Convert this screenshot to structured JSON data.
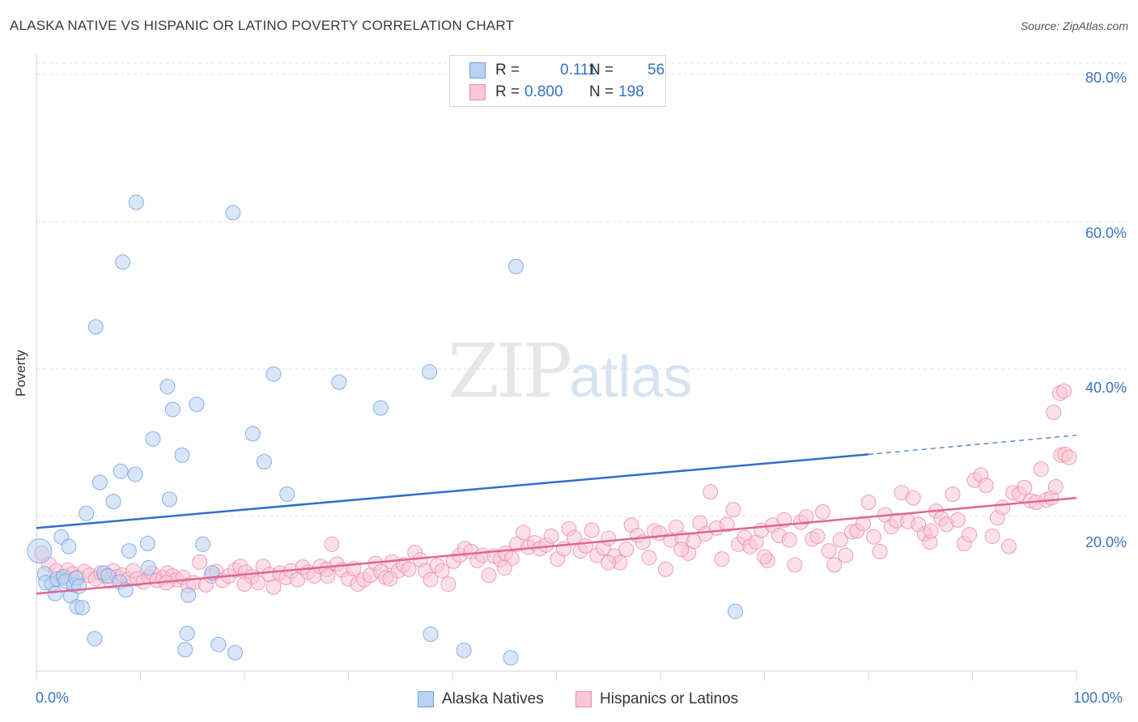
{
  "title": "ALASKA NATIVE VS HISPANIC OR LATINO POVERTY CORRELATION CHART",
  "source": "Source: ZipAtlas.com",
  "watermark": {
    "zip": "ZIP",
    "atlas": "atlas"
  },
  "legend_top": [
    {
      "r_label": "R =",
      "r_value": "0.111",
      "n_label": "N =",
      "n_value": "56",
      "color": "#b9d2f3",
      "border": "#6d9fe0"
    },
    {
      "r_label": "R =",
      "r_value": "0.800",
      "n_label": "N =",
      "n_value": "198",
      "color": "#f9c7d6",
      "border": "#ea8aa8"
    }
  ],
  "legend_bottom": [
    "Alaska Natives",
    "Hispanics or Latinos"
  ],
  "chart_data": {
    "type": "scatter",
    "title": "ALASKA NATIVE VS HISPANIC OR LATINO POVERTY CORRELATION CHART",
    "xlabel": "",
    "ylabel": "Poverty",
    "xlim": [
      0,
      100
    ],
    "ylim": [
      -1,
      81.5
    ],
    "x_tick_labels": [
      "0.0%",
      "100.0%"
    ],
    "y_ticks": [
      20,
      40,
      60,
      80
    ],
    "y_tick_labels": [
      "20.0%",
      "40.0%",
      "60.0%",
      "80.0%"
    ],
    "grid": true,
    "legend_position": "top-center",
    "series": [
      {
        "name": "Alaska Natives",
        "color": "#6d9fe0",
        "fill": "#b9d2f3",
        "trend": {
          "x": [
            0,
            80
          ],
          "y": [
            18.4,
            28.4
          ],
          "dashed_to": [
            100,
            31.0
          ]
        },
        "points": [
          [
            0.3,
            15.3
          ],
          [
            0.8,
            12.2
          ],
          [
            0.9,
            11.0
          ],
          [
            1.5,
            10.8
          ],
          [
            1.8,
            9.5
          ],
          [
            2.0,
            11.5
          ],
          [
            2.4,
            17.2
          ],
          [
            2.6,
            11.8
          ],
          [
            2.8,
            11.2
          ],
          [
            3.1,
            15.9
          ],
          [
            3.3,
            9.2
          ],
          [
            3.6,
            10.7
          ],
          [
            3.8,
            11.6
          ],
          [
            3.9,
            7.7
          ],
          [
            4.1,
            10.5
          ],
          [
            4.4,
            7.6
          ],
          [
            4.8,
            20.4
          ],
          [
            5.6,
            3.4
          ],
          [
            6.1,
            24.6
          ],
          [
            6.5,
            12.3
          ],
          [
            6.9,
            11.9
          ],
          [
            7.4,
            22.0
          ],
          [
            8.0,
            11.1
          ],
          [
            8.1,
            26.1
          ],
          [
            8.6,
            10.0
          ],
          [
            8.9,
            15.3
          ],
          [
            9.5,
            25.7
          ],
          [
            9.6,
            62.6
          ],
          [
            8.3,
            54.5
          ],
          [
            5.7,
            45.7
          ],
          [
            10.7,
            16.3
          ],
          [
            10.8,
            13.0
          ],
          [
            11.2,
            30.5
          ],
          [
            12.6,
            37.6
          ],
          [
            12.8,
            22.3
          ],
          [
            13.1,
            34.5
          ],
          [
            14.0,
            28.3
          ],
          [
            14.3,
            1.9
          ],
          [
            14.5,
            4.1
          ],
          [
            14.6,
            9.3
          ],
          [
            15.4,
            35.2
          ],
          [
            16.0,
            16.2
          ],
          [
            16.9,
            12.3
          ],
          [
            17.5,
            2.6
          ],
          [
            18.9,
            61.2
          ],
          [
            19.1,
            1.5
          ],
          [
            20.8,
            31.2
          ],
          [
            21.9,
            27.4
          ],
          [
            22.8,
            39.3
          ],
          [
            24.1,
            23.0
          ],
          [
            29.1,
            38.2
          ],
          [
            33.1,
            34.7
          ],
          [
            37.8,
            39.6
          ],
          [
            37.9,
            4.0
          ],
          [
            41.1,
            1.8
          ],
          [
            46.1,
            53.9
          ],
          [
            45.6,
            0.8
          ],
          [
            67.2,
            7.1
          ]
        ]
      },
      {
        "name": "Hispanics or Latinos",
        "color": "#ea8aa8",
        "fill": "#f9c7d6",
        "trend": {
          "x": [
            0,
            100
          ],
          "y": [
            9.5,
            22.5
          ]
        },
        "points": [
          [
            0.5,
            15.0
          ],
          [
            1.2,
            13.5
          ],
          [
            1.9,
            12.6
          ],
          [
            2.4,
            11.6
          ],
          [
            3.0,
            12.7
          ],
          [
            3.5,
            12.2
          ],
          [
            4.0,
            11.7
          ],
          [
            4.6,
            12.5
          ],
          [
            5.1,
            12.0
          ],
          [
            5.7,
            11.5
          ],
          [
            6.2,
            12.3
          ],
          [
            6.6,
            11.9
          ],
          [
            7.1,
            11.2
          ],
          [
            7.4,
            12.6
          ],
          [
            7.8,
            11.8
          ],
          [
            8.3,
            12.0
          ],
          [
            8.8,
            11.4
          ],
          [
            9.3,
            12.6
          ],
          [
            9.7,
            11.5
          ],
          [
            10.3,
            11.1
          ],
          [
            10.8,
            11.8
          ],
          [
            11.1,
            12.3
          ],
          [
            11.6,
            11.3
          ],
          [
            12.2,
            11.7
          ],
          [
            12.6,
            12.3
          ],
          [
            13.1,
            11.9
          ],
          [
            13.5,
            11.4
          ],
          [
            14.1,
            11.7
          ],
          [
            14.6,
            10.6
          ],
          [
            15.1,
            11.0
          ],
          [
            15.7,
            13.8
          ],
          [
            16.3,
            10.7
          ],
          [
            16.8,
            11.9
          ],
          [
            17.3,
            12.5
          ],
          [
            17.9,
            11.3
          ],
          [
            18.5,
            11.9
          ],
          [
            19.1,
            12.7
          ],
          [
            19.6,
            13.2
          ],
          [
            20.1,
            12.4
          ],
          [
            20.7,
            11.8
          ],
          [
            21.3,
            11.0
          ],
          [
            21.8,
            13.2
          ],
          [
            22.4,
            12.1
          ],
          [
            22.8,
            10.4
          ],
          [
            23.4,
            12.3
          ],
          [
            24.0,
            11.7
          ],
          [
            24.5,
            12.6
          ],
          [
            25.1,
            11.4
          ],
          [
            25.6,
            13.1
          ],
          [
            26.1,
            12.4
          ],
          [
            26.7,
            11.9
          ],
          [
            27.3,
            13.2
          ],
          [
            27.9,
            12.8
          ],
          [
            28.4,
            16.2
          ],
          [
            28.9,
            13.5
          ],
          [
            29.4,
            12.7
          ],
          [
            30.0,
            11.5
          ],
          [
            30.5,
            12.9
          ],
          [
            30.9,
            10.8
          ],
          [
            31.5,
            11.4
          ],
          [
            32.1,
            12.0
          ],
          [
            32.6,
            13.6
          ],
          [
            33.1,
            12.5
          ],
          [
            33.6,
            11.7
          ],
          [
            34.2,
            13.8
          ],
          [
            34.8,
            12.6
          ],
          [
            35.3,
            13.4
          ],
          [
            35.8,
            12.8
          ],
          [
            36.4,
            15.1
          ],
          [
            36.9,
            14.1
          ],
          [
            37.4,
            12.6
          ],
          [
            37.9,
            11.4
          ],
          [
            38.5,
            13.3
          ],
          [
            39.0,
            12.6
          ],
          [
            39.6,
            10.8
          ],
          [
            40.1,
            13.9
          ],
          [
            40.7,
            14.7
          ],
          [
            41.2,
            15.6
          ],
          [
            41.8,
            15.2
          ],
          [
            42.4,
            14.0
          ],
          [
            42.9,
            14.7
          ],
          [
            43.5,
            12.0
          ],
          [
            44.0,
            14.6
          ],
          [
            44.6,
            14.1
          ],
          [
            45.1,
            15.0
          ],
          [
            45.7,
            14.3
          ],
          [
            46.2,
            16.2
          ],
          [
            46.8,
            17.8
          ],
          [
            47.3,
            15.8
          ],
          [
            47.9,
            16.4
          ],
          [
            48.4,
            15.6
          ],
          [
            49.0,
            16.1
          ],
          [
            49.5,
            17.3
          ],
          [
            50.1,
            14.2
          ],
          [
            50.7,
            15.6
          ],
          [
            51.2,
            18.3
          ],
          [
            51.7,
            17.1
          ],
          [
            52.3,
            15.3
          ],
          [
            52.8,
            16.0
          ],
          [
            53.4,
            18.1
          ],
          [
            53.9,
            14.7
          ],
          [
            54.5,
            15.7
          ],
          [
            55.0,
            17.0
          ],
          [
            55.6,
            14.6
          ],
          [
            56.1,
            13.7
          ],
          [
            56.7,
            15.5
          ],
          [
            57.2,
            18.8
          ],
          [
            57.8,
            17.4
          ],
          [
            58.3,
            16.5
          ],
          [
            58.9,
            14.4
          ],
          [
            59.4,
            18.0
          ],
          [
            59.9,
            17.7
          ],
          [
            60.5,
            12.8
          ],
          [
            61.0,
            16.8
          ],
          [
            61.5,
            18.5
          ],
          [
            62.1,
            17.0
          ],
          [
            62.7,
            15.0
          ],
          [
            63.2,
            16.6
          ],
          [
            63.8,
            19.1
          ],
          [
            64.3,
            17.6
          ],
          [
            64.8,
            23.3
          ],
          [
            65.4,
            18.4
          ],
          [
            65.9,
            14.2
          ],
          [
            66.4,
            18.9
          ],
          [
            67.0,
            20.9
          ],
          [
            67.5,
            16.2
          ],
          [
            68.1,
            17.1
          ],
          [
            68.6,
            15.9
          ],
          [
            69.2,
            16.5
          ],
          [
            69.7,
            18.1
          ],
          [
            70.3,
            14.0
          ],
          [
            70.8,
            18.8
          ],
          [
            71.4,
            17.4
          ],
          [
            71.9,
            19.5
          ],
          [
            72.4,
            16.8
          ],
          [
            72.9,
            13.4
          ],
          [
            73.5,
            19.2
          ],
          [
            74.0,
            19.9
          ],
          [
            74.6,
            16.9
          ],
          [
            75.1,
            17.3
          ],
          [
            75.6,
            20.6
          ],
          [
            76.2,
            15.3
          ],
          [
            76.7,
            13.4
          ],
          [
            77.3,
            16.8
          ],
          [
            77.8,
            14.7
          ],
          [
            78.4,
            17.9
          ],
          [
            78.9,
            18.0
          ],
          [
            79.5,
            19.0
          ],
          [
            80.0,
            21.9
          ],
          [
            80.5,
            17.2
          ],
          [
            81.1,
            15.2
          ],
          [
            81.6,
            20.2
          ],
          [
            82.2,
            18.6
          ],
          [
            82.7,
            19.4
          ],
          [
            83.2,
            23.2
          ],
          [
            83.8,
            19.3
          ],
          [
            84.3,
            22.5
          ],
          [
            84.8,
            18.9
          ],
          [
            85.4,
            17.6
          ],
          [
            85.9,
            16.5
          ],
          [
            86.5,
            20.7
          ],
          [
            87.0,
            19.7
          ],
          [
            87.5,
            18.9
          ],
          [
            88.1,
            23.0
          ],
          [
            88.6,
            19.5
          ],
          [
            89.2,
            16.3
          ],
          [
            89.7,
            17.5
          ],
          [
            90.2,
            24.9
          ],
          [
            90.8,
            25.6
          ],
          [
            91.3,
            24.2
          ],
          [
            91.9,
            17.3
          ],
          [
            92.4,
            19.8
          ],
          [
            92.9,
            21.2
          ],
          [
            93.5,
            15.9
          ],
          [
            93.9,
            23.2
          ],
          [
            94.5,
            23.0
          ],
          [
            95.0,
            23.9
          ],
          [
            95.6,
            22.1
          ],
          [
            96.1,
            21.9
          ],
          [
            96.6,
            26.4
          ],
          [
            97.1,
            22.2
          ],
          [
            97.6,
            22.5
          ],
          [
            98.0,
            24.0
          ],
          [
            98.5,
            28.3
          ],
          [
            98.9,
            28.4
          ],
          [
            99.3,
            28.0
          ],
          [
            97.8,
            34.1
          ],
          [
            98.4,
            36.7
          ],
          [
            98.8,
            37.0
          ],
          [
            12.5,
            11.0
          ],
          [
            20.0,
            10.8
          ],
          [
            34.0,
            11.5
          ],
          [
            45.0,
            13.0
          ],
          [
            62.0,
            15.5
          ],
          [
            70.0,
            14.5
          ],
          [
            86.0,
            18.0
          ],
          [
            55.0,
            13.7
          ],
          [
            28.0,
            11.9
          ]
        ]
      }
    ]
  }
}
